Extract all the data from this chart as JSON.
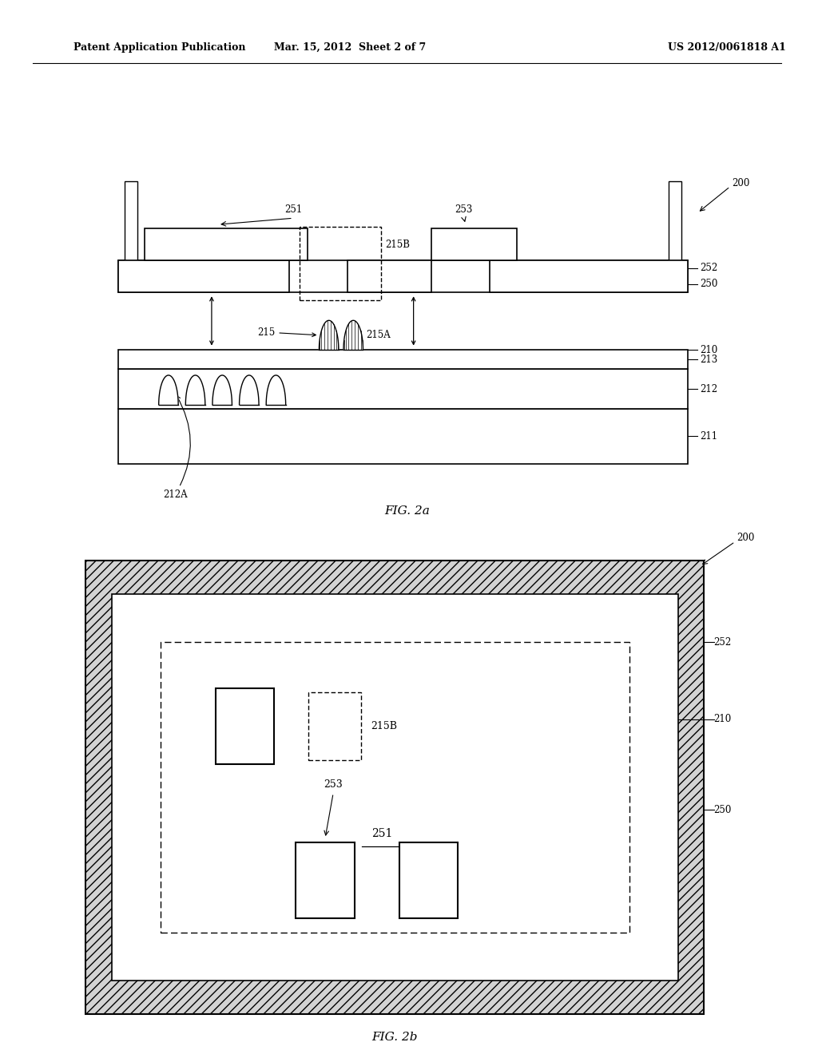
{
  "bg_color": "#ffffff",
  "header_left": "Patent Application Publication",
  "header_mid": "Mar. 15, 2012  Sheet 2 of 7",
  "header_right": "US 2012/0061818 A1",
  "fig2a_label": "FIG. 2a",
  "fig2b_label": "FIG. 2b"
}
